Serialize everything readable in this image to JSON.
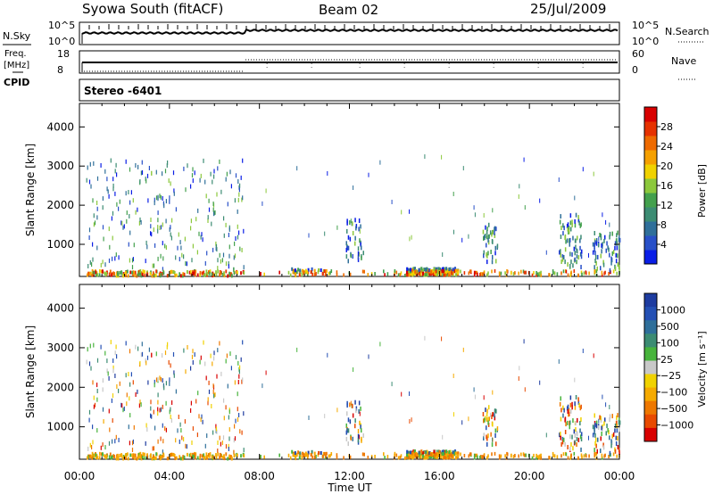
{
  "header": {
    "station": "Syowa South (fitACF)",
    "beam": "Beam 02",
    "date": "25/Jul/2009"
  },
  "strip_labels": {
    "nsky": "N.Sky",
    "nsearch": "N.Search",
    "freq_top": "Freq.",
    "freq_unit": "[MHz]",
    "cpid": "CPID",
    "nave": "Nave",
    "stereo": "Stereo -6401"
  },
  "noise_panel": {
    "left_ticks": [
      "10^5",
      "10^0"
    ],
    "right_ticks": [
      "10^5",
      "10^0"
    ]
  },
  "freq_panel": {
    "left_ticks": [
      "18",
      "8"
    ],
    "right_ticks": [
      "60",
      "0"
    ]
  },
  "chart_data": [
    {
      "type": "heatmap",
      "name": "power",
      "ylabel": "Slant Range [km]",
      "xlabel": "",
      "x_ticks": [
        "00:00",
        "04:00",
        "08:00",
        "12:00",
        "16:00",
        "20:00",
        "00:00"
      ],
      "xlim_hours": [
        0,
        24
      ],
      "ylim": [
        180,
        4600
      ],
      "y_ticks": [
        1000,
        2000,
        3000,
        4000
      ],
      "colorbar": {
        "label": "Power [dB]",
        "range": [
          0,
          32
        ],
        "ticks": [
          "4",
          "8",
          "12",
          "16",
          "20",
          "24",
          "28"
        ],
        "colors": [
          "#0a1ee6",
          "#2850c8",
          "#2f6f9a",
          "#3c8c73",
          "#43a04d",
          "#8cc83c",
          "#f0d200",
          "#f5a000",
          "#ee6a00",
          "#e63200",
          "#d80000"
        ]
      }
    },
    {
      "type": "heatmap",
      "name": "velocity",
      "ylabel": "Slant Range [km]",
      "xlabel": "Time UT",
      "x_ticks": [
        "00:00",
        "04:00",
        "08:00",
        "12:00",
        "16:00",
        "20:00",
        "00:00"
      ],
      "xlim_hours": [
        0,
        24
      ],
      "ylim": [
        180,
        4600
      ],
      "y_ticks": [
        1000,
        2000,
        3000,
        4000
      ],
      "colorbar": {
        "label": "Velocity [m s⁻¹]",
        "ticks": [
          "1000",
          "500",
          "100",
          "25",
          "−25",
          "−100",
          "−500",
          "−1000"
        ],
        "colors": [
          "#1e3ca0",
          "#2450b4",
          "#2f6f9a",
          "#3c8c73",
          "#48b43c",
          "#c8c8c8",
          "#f0d200",
          "#f5aa00",
          "#ee7800",
          "#e84a00",
          "#d80000"
        ]
      }
    }
  ]
}
